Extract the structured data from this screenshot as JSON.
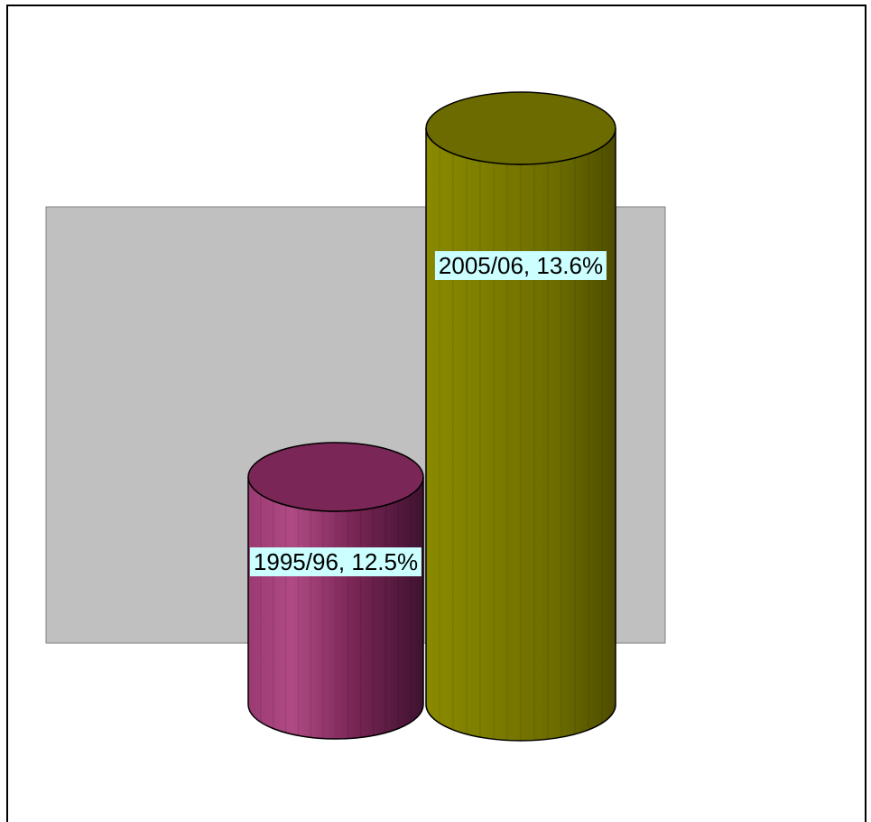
{
  "chart_data": {
    "type": "bar",
    "style": "3d-cylinder",
    "categories": [
      "1995/96",
      "2005/06"
    ],
    "values": [
      12.5,
      13.6
    ],
    "unit": "%",
    "data_labels": [
      "1995/96, 12.5%",
      "2005/06, 13.6%"
    ],
    "colors": [
      "#8b2f63",
      "#7d7d00"
    ],
    "plot_area_color": "#c0c0c0",
    "label_background": "#ccffff",
    "title": "",
    "xlabel": "",
    "ylabel": "",
    "legend": "none",
    "grid": false,
    "axes_visible": false
  }
}
